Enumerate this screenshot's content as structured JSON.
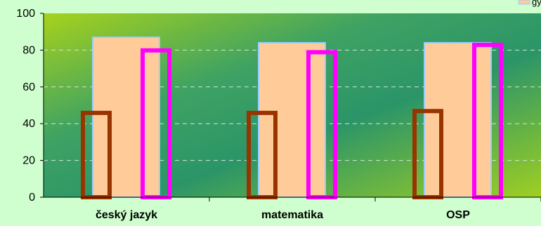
{
  "chart_data": {
    "type": "bar",
    "categories": [
      "český jazyk",
      "matematika",
      "OSP"
    ],
    "series": [
      {
        "name": "",
        "values": [
          47,
          47,
          48
        ],
        "style": "outline",
        "color": "#993300"
      },
      {
        "name": "",
        "values": [
          87,
          84,
          84
        ],
        "style": "filled",
        "fill": "#ffcc99",
        "stroke": "#99ccff"
      },
      {
        "name": "",
        "values": [
          81,
          80,
          84
        ],
        "style": "outline",
        "color": "#ff00ff"
      }
    ],
    "yticks": [
      0,
      20,
      40,
      60,
      80,
      100
    ],
    "ylim": [
      0,
      100
    ],
    "grid": true,
    "legend_fragment": "gy",
    "legend_placement": "top-right",
    "colors": {
      "page_background": "#cfffcf",
      "plot_gradient": [
        "#9acd1a",
        "#2e9a6a",
        "#9acd1a"
      ],
      "gridline": "#d8e8d8",
      "axis": "#000000"
    }
  }
}
